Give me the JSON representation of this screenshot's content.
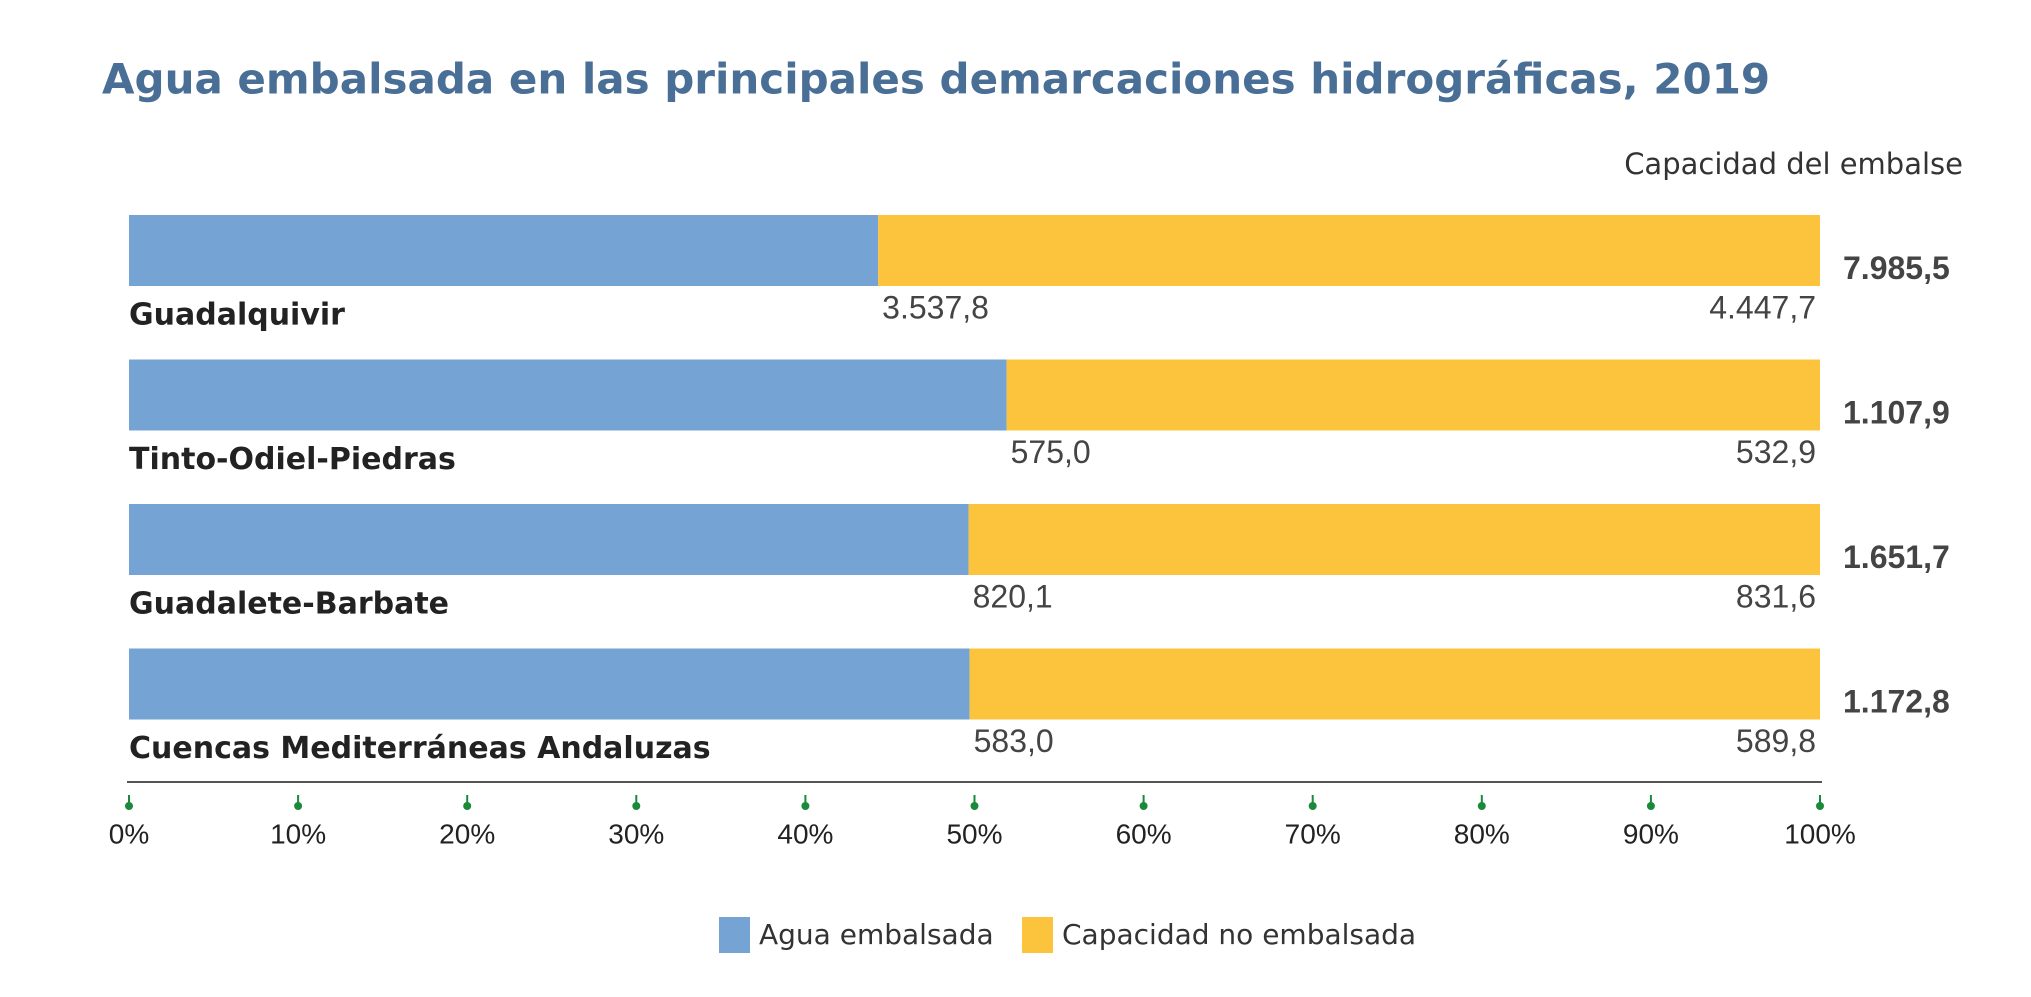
{
  "chart_data": {
    "type": "bar",
    "orientation": "horizontal",
    "stacked": "percent",
    "title": "Agua embalsada en las principales demarcaciones hidrográficas, 2019",
    "total_header": "Capacidad del embalse",
    "categories": [
      "Guadalquivir",
      "Tinto-Odiel-Piedras",
      "Guadalete-Barbate",
      "Cuencas Mediterráneas Andaluzas"
    ],
    "series": [
      {
        "name": "Agua embalsada",
        "color": "#75a3d4",
        "values": [
          3537.8,
          575.0,
          820.1,
          583.0
        ],
        "value_labels": [
          "3.537,8",
          "575,0",
          "820,1",
          "583,0"
        ]
      },
      {
        "name": "Capacidad no embalsada",
        "color": "#fcc43c",
        "values": [
          4447.7,
          532.9,
          831.6,
          589.8
        ],
        "value_labels": [
          "4.447,7",
          "532,9",
          "831,6",
          "589,8"
        ]
      }
    ],
    "totals": [
      7985.5,
      1107.9,
      1651.7,
      1172.8
    ],
    "total_labels": [
      "7.985,5",
      "1.107,9",
      "1.651,7",
      "1.172,8"
    ],
    "xlim": [
      0,
      100
    ],
    "xticks": [
      {
        "value": 0,
        "label": "0%"
      },
      {
        "value": 10,
        "label": "10%"
      },
      {
        "value": 20,
        "label": "20%"
      },
      {
        "value": 30,
        "label": "30%"
      },
      {
        "value": 40,
        "label": "40%"
      },
      {
        "value": 50,
        "label": "50%"
      },
      {
        "value": 60,
        "label": "60%"
      },
      {
        "value": 70,
        "label": "70%"
      },
      {
        "value": 80,
        "label": "80%"
      },
      {
        "value": 90,
        "label": "90%"
      },
      {
        "value": 100,
        "label": "100%"
      }
    ],
    "legend": "bottom"
  }
}
